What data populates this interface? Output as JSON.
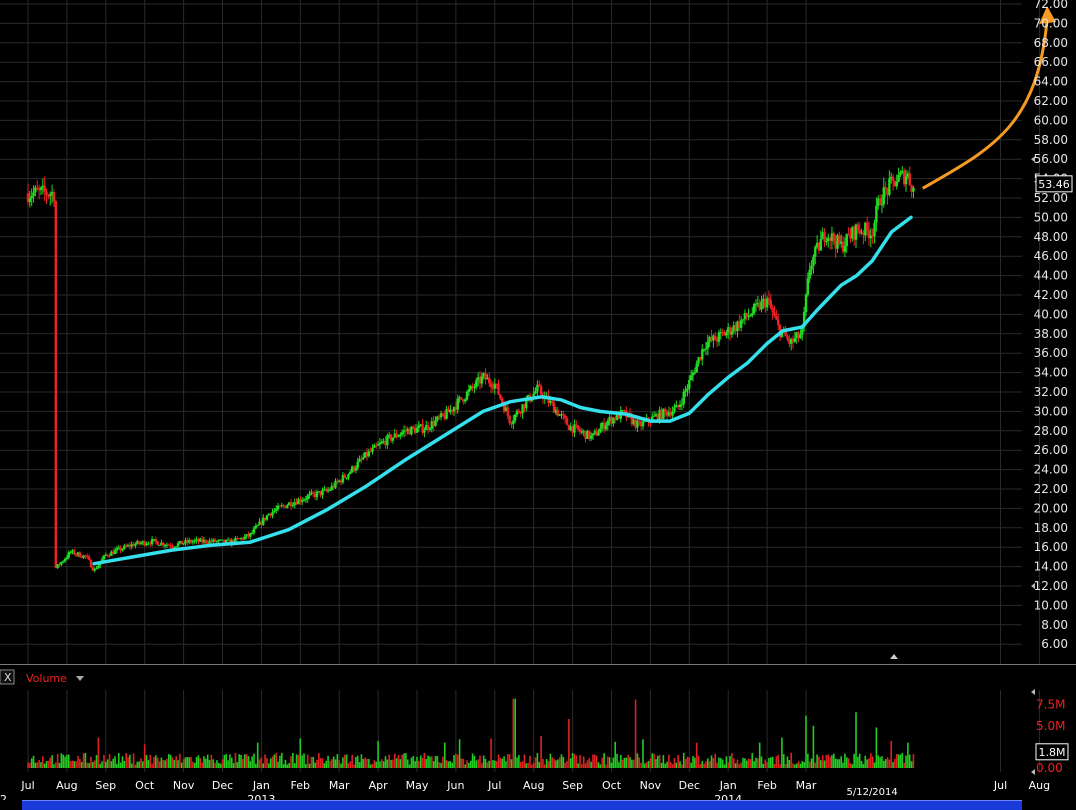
{
  "chart_data": {
    "type": "candlestick",
    "price_axis": {
      "range": [
        6,
        72
      ],
      "ticks": [
        "72.00",
        "70.00",
        "68.00",
        "66.00",
        "64.00",
        "62.00",
        "60.00",
        "58.00",
        "56.00",
        "54.00",
        "52.00",
        "50.00",
        "48.00",
        "46.00",
        "44.00",
        "42.00",
        "40.00",
        "38.00",
        "36.00",
        "34.00",
        "32.00",
        "30.00",
        "28.00",
        "26.00",
        "24.00",
        "22.00",
        "20.00",
        "18.00",
        "16.00",
        "14.00",
        "12.00",
        "10.00",
        "8.00",
        "6.00"
      ],
      "tick_color": "#e6e6e6"
    },
    "x_axis": {
      "months": [
        "Jul",
        "Aug",
        "Sep",
        "Oct",
        "Nov",
        "Dec",
        "Jan",
        "Feb",
        "Mar",
        "Apr",
        "May",
        "Jun",
        "Jul",
        "Aug",
        "Sep",
        "Oct",
        "Nov",
        "Dec",
        "Jan",
        "Feb",
        "Mar",
        "Jul",
        "Aug"
      ],
      "years": [
        {
          "label": "2013",
          "after_month": 6
        },
        {
          "label": "2014",
          "after_month": 18
        }
      ],
      "date_marker": "5/12/2014",
      "left_edge_label": "2"
    },
    "price_series": {
      "anchors": [
        [
          0,
          13.8
        ],
        [
          0.4,
          15.5
        ],
        [
          0.8,
          15.0
        ],
        [
          1.0,
          13.6
        ],
        [
          1.3,
          15.2
        ],
        [
          2,
          16.3
        ],
        [
          2.5,
          16.6
        ],
        [
          3,
          16.2
        ],
        [
          3.5,
          16.6
        ],
        [
          4,
          16.6
        ],
        [
          4.5,
          16.5
        ],
        [
          5,
          17.2
        ],
        [
          5.5,
          19.5
        ],
        [
          6,
          20.5
        ],
        [
          6.5,
          21.2
        ],
        [
          7,
          21.8
        ],
        [
          7.5,
          23.5
        ],
        [
          8,
          25.5
        ],
        [
          8.5,
          27.0
        ],
        [
          9,
          28.0
        ],
        [
          9.5,
          28.3
        ],
        [
          10,
          29.5
        ],
        [
          10.5,
          31.5
        ],
        [
          11,
          33.5
        ],
        [
          11.3,
          32.8
        ],
        [
          11.7,
          29.0
        ],
        [
          12,
          30.5
        ],
        [
          12.4,
          32.3
        ],
        [
          12.8,
          30.5
        ],
        [
          13.2,
          28.5
        ],
        [
          13.8,
          27.3
        ],
        [
          14.2,
          29.0
        ],
        [
          14.6,
          29.8
        ],
        [
          15,
          28.5
        ],
        [
          15.5,
          29.6
        ],
        [
          16,
          30.3
        ],
        [
          16.3,
          33.0
        ],
        [
          16.7,
          37.0
        ],
        [
          17,
          37.5
        ],
        [
          17.5,
          38.8
        ],
        [
          18,
          40.5
        ],
        [
          18.3,
          41.5
        ],
        [
          18.6,
          38.5
        ],
        [
          18.9,
          37.0
        ],
        [
          19.2,
          38.0
        ],
        [
          19.4,
          45.0
        ],
        [
          19.8,
          48.5
        ],
        [
          20.2,
          47.0
        ],
        [
          20.6,
          48.8
        ],
        [
          21,
          48.5
        ],
        [
          21.2,
          52.0
        ],
        [
          21.6,
          53.8
        ],
        [
          21.9,
          54.5
        ],
        [
          22.1,
          52.5
        ]
      ],
      "last_price": "53.46",
      "up_color": "#22dd22",
      "down_color": "#ee2222"
    },
    "moving_average": {
      "color": "#33e0ec",
      "points": [
        [
          1.0,
          14.3
        ],
        [
          2,
          15.0
        ],
        [
          3,
          15.7
        ],
        [
          4,
          16.2
        ],
        [
          5,
          16.5
        ],
        [
          6,
          17.8
        ],
        [
          7,
          19.9
        ],
        [
          8,
          22.3
        ],
        [
          9,
          25.0
        ],
        [
          10,
          27.5
        ],
        [
          11,
          30.0
        ],
        [
          11.7,
          31.0
        ],
        [
          12.5,
          31.5
        ],
        [
          13,
          31.2
        ],
        [
          13.5,
          30.4
        ],
        [
          14,
          30.0
        ],
        [
          14.7,
          29.7
        ],
        [
          15.3,
          29.0
        ],
        [
          15.8,
          29.0
        ],
        [
          16.3,
          29.8
        ],
        [
          16.8,
          31.8
        ],
        [
          17.3,
          33.5
        ],
        [
          17.8,
          35.0
        ],
        [
          18.3,
          37.0
        ],
        [
          18.7,
          38.3
        ],
        [
          19.2,
          38.7
        ],
        [
          19.6,
          40.5
        ],
        [
          20.2,
          43.0
        ],
        [
          20.6,
          44.0
        ],
        [
          21,
          45.5
        ],
        [
          21.5,
          48.5
        ],
        [
          22.0,
          50.0
        ]
      ]
    },
    "arrow": {
      "color": "#f59a22",
      "from": [
        22.3,
        53.0
      ],
      "to": [
        25.6,
        71.8
      ]
    },
    "volume": {
      "label": "Volume",
      "close_symbol": "X",
      "ticks": [
        "7.5M",
        "5.0M",
        "0.00"
      ],
      "tick_color": "#ee2222",
      "last_volume": "1.8M",
      "max": 8.8,
      "spikes": [
        [
          1.1,
          3.6
        ],
        [
          2.3,
          2.8
        ],
        [
          5.2,
          3.0
        ],
        [
          6.3,
          3.5
        ],
        [
          8.3,
          3.2
        ],
        [
          10.0,
          3.0
        ],
        [
          10.4,
          3.4
        ],
        [
          11.2,
          3.5
        ],
        [
          11.8,
          8.2
        ],
        [
          12.5,
          3.8
        ],
        [
          13.2,
          5.8
        ],
        [
          14.4,
          3.1
        ],
        [
          14.9,
          8.1
        ],
        [
          15.1,
          3.4
        ],
        [
          16.5,
          3.0
        ],
        [
          18.1,
          3.0
        ],
        [
          18.7,
          3.6
        ],
        [
          19.3,
          6.2
        ],
        [
          19.5,
          5.0
        ],
        [
          20.6,
          6.6
        ],
        [
          21.1,
          4.8
        ],
        [
          21.5,
          3.2
        ],
        [
          21.9,
          3.0
        ]
      ]
    }
  }
}
